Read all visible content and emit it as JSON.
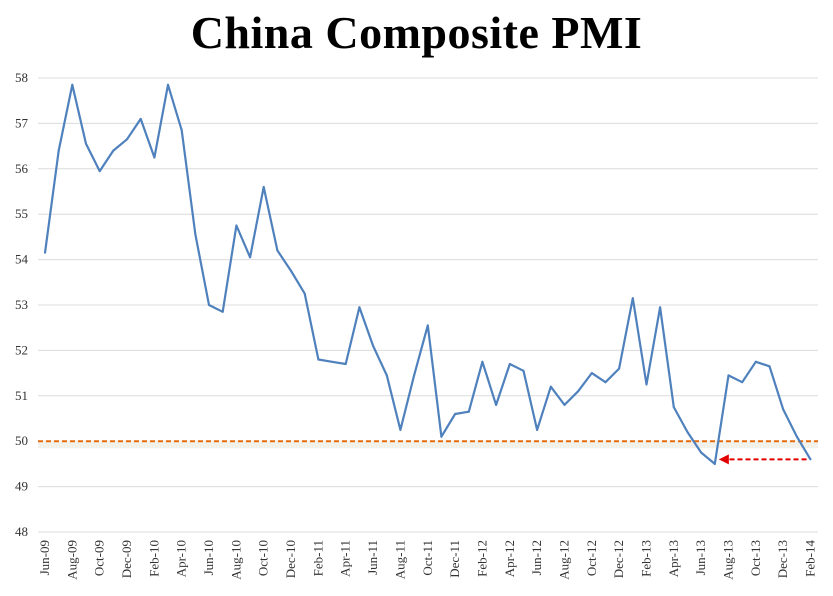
{
  "chart_data": {
    "type": "line",
    "title": "China Composite PMI",
    "xlabel": "",
    "ylabel": "",
    "ylim": [
      48,
      58
    ],
    "yticks": [
      "48",
      "49",
      "50",
      "51",
      "52",
      "53",
      "54",
      "55",
      "56",
      "57",
      "58"
    ],
    "grid": true,
    "legend": "none",
    "x_tick_labels": [
      "Jun-09",
      "Aug-09",
      "Oct-09",
      "Dec-09",
      "Feb-10",
      "Apr-10",
      "Jun-10",
      "Aug-10",
      "Oct-10",
      "Dec-10",
      "Feb-11",
      "Apr-11",
      "Jun-11",
      "Aug-11",
      "Oct-11",
      "Dec-11",
      "Feb-12",
      "Apr-12",
      "Jun-12",
      "Aug-12",
      "Oct-12",
      "Dec-12",
      "Feb-13",
      "Apr-13",
      "Jun-13",
      "Aug-13",
      "Oct-13",
      "Dec-13",
      "Feb-14"
    ],
    "x": [
      "Jun-09",
      "Jul-09",
      "Aug-09",
      "Sep-09",
      "Oct-09",
      "Nov-09",
      "Dec-09",
      "Jan-10",
      "Feb-10",
      "Mar-10",
      "Apr-10",
      "May-10",
      "Jun-10",
      "Jul-10",
      "Aug-10",
      "Sep-10",
      "Oct-10",
      "Nov-10",
      "Dec-10",
      "Jan-11",
      "Feb-11",
      "Mar-11",
      "Apr-11",
      "May-11",
      "Jun-11",
      "Jul-11",
      "Aug-11",
      "Sep-11",
      "Oct-11",
      "Nov-11",
      "Dec-11",
      "Jan-12",
      "Feb-12",
      "Mar-12",
      "Apr-12",
      "May-12",
      "Jun-12",
      "Jul-12",
      "Aug-12",
      "Sep-12",
      "Oct-12",
      "Nov-12",
      "Dec-12",
      "Jan-13",
      "Feb-13",
      "Mar-13",
      "Apr-13",
      "May-13",
      "Jun-13",
      "Jul-13",
      "Aug-13",
      "Sep-13",
      "Oct-13",
      "Nov-13",
      "Dec-13",
      "Jan-14",
      "Feb-14"
    ],
    "series": [
      {
        "color": "#4f81bd",
        "values": [
          54.15,
          56.4,
          57.85,
          56.55,
          55.95,
          56.4,
          56.65,
          57.1,
          56.25,
          57.85,
          56.85,
          54.55,
          53.0,
          52.85,
          54.75,
          54.05,
          55.6,
          54.2,
          53.75,
          53.25,
          51.8,
          51.75,
          51.7,
          52.95,
          52.1,
          51.45,
          50.25,
          51.45,
          52.55,
          50.1,
          50.6,
          50.65,
          51.75,
          50.8,
          51.7,
          51.55,
          50.25,
          51.2,
          50.8,
          51.1,
          51.5,
          51.3,
          51.6,
          53.15,
          51.25,
          52.95,
          50.75,
          50.2,
          49.75,
          49.5,
          51.45,
          51.3,
          51.75,
          51.65,
          50.7,
          50.1,
          49.6
        ]
      }
    ],
    "annotations": [
      {
        "type": "horizontal-line",
        "y": 50,
        "color": "#e46c0a",
        "style": "dashed"
      },
      {
        "type": "arrow",
        "from": {
          "x": "Feb-14",
          "y": 49.6
        },
        "to": {
          "x": "Jul-13",
          "y": 49.6
        },
        "color": "#e00000",
        "style": "dashed"
      }
    ]
  }
}
